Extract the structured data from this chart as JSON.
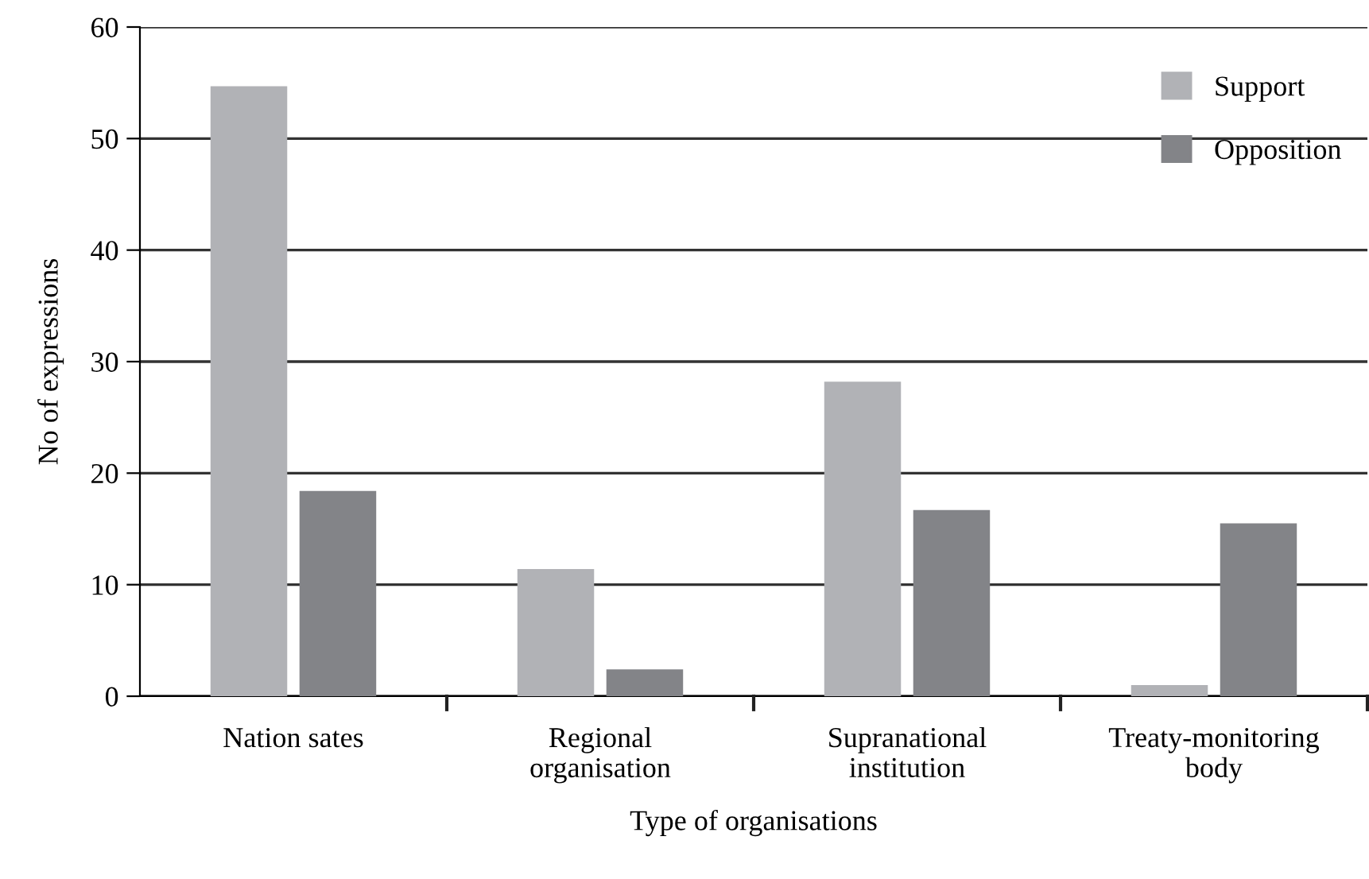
{
  "chart_data": {
    "type": "bar",
    "xlabel": "Type of organisations",
    "ylabel": "No of expressions",
    "categories": [
      "Nation sates",
      "Regional\norganisation",
      "Supranational\ninstitution",
      "Treaty-monitoring\nbody"
    ],
    "series": [
      {
        "name": "Support",
        "color": "#b1b2b6",
        "values": [
          54.7,
          11.4,
          28.2,
          1.0
        ]
      },
      {
        "name": "Opposition",
        "color": "#838488",
        "values": [
          18.4,
          2.4,
          16.7,
          15.5
        ]
      }
    ],
    "ylim": [
      0,
      60
    ],
    "yticks": [
      0,
      10,
      20,
      30,
      40,
      50,
      60
    ],
    "grid": "y",
    "legend": "top right"
  }
}
